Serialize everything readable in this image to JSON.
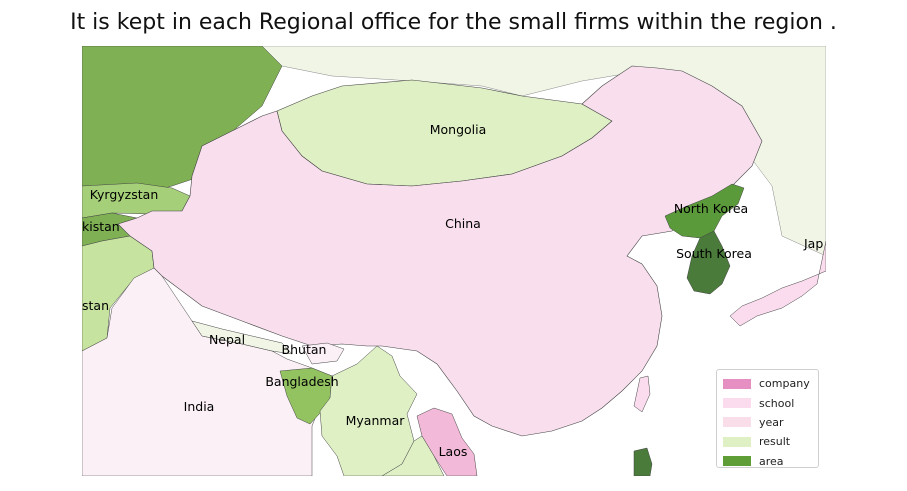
{
  "title": "It is kept in each Regional office for the small firms within the region .",
  "legend": [
    {
      "label": "company",
      "color": "#e58fc3"
    },
    {
      "label": "school",
      "color": "#fbdcee"
    },
    {
      "label": "year",
      "color": "#f9dde9"
    },
    {
      "label": "result",
      "color": "#dff0c5"
    },
    {
      "label": "area",
      "color": "#5f9e36"
    }
  ],
  "regions": {
    "mongolia": "Mongolia",
    "china": "China",
    "north_korea": "North Korea",
    "south_korea": "South Korea",
    "japan": "Jap",
    "kyrgyzstan": "Kyrgyzstan",
    "tajikistan": "kistan",
    "afghanistan": "stan",
    "nepal": "Nepal",
    "bhutan": "Bhutan",
    "bangladesh": "Bangladesh",
    "india": "India",
    "myanmar": "Myanmar",
    "laos": "Laos"
  },
  "colors": {
    "sea": "#ffffff",
    "russia": "#7fb154",
    "far_east": "#f0f5e6",
    "mongolia": "#dff0c5",
    "china": "#f9dfee",
    "kazakhstan": "#7fb154",
    "kyrgyzstan": "#a6cf79",
    "tajikistan": "#7fb154",
    "afghanistan": "#c6e39f",
    "india": "#fbf0f5",
    "nepal": "#f0f5e6",
    "bhutan": "#fbf0f5",
    "bangladesh": "#93c361",
    "myanmar": "#dff0c5",
    "laos": "#f2bad8",
    "thailand": "#dff0c5",
    "north_korea": "#5a9a3b",
    "south_korea": "#4a7b3a",
    "japan": "#fbdcee",
    "philippines": "#4a7b3a",
    "taiwan": "#fbdcee"
  }
}
